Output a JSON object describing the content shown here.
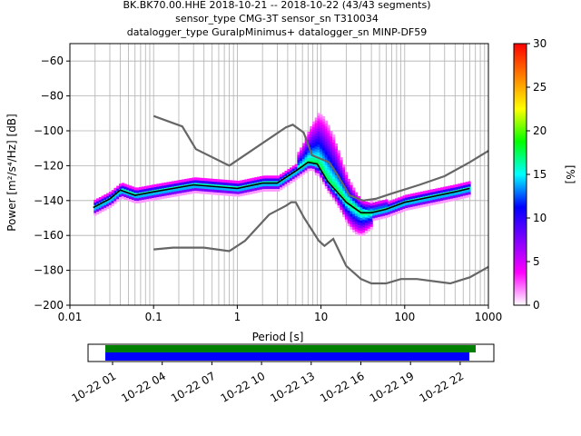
{
  "title_lines": [
    "BK.BK70.00.HHE   2018-10-21 -- 2018-10-22  (43/43 segments)",
    "sensor_type CMG-3T sensor_sn T310034",
    "datalogger_type GuralpMinimus+ datalogger_sn MINP-DF59"
  ],
  "chart_data": {
    "type": "heatmap",
    "xlabel": "Period [s]",
    "ylabel": "Power [m²/s⁴/Hz] [dB]",
    "xscale": "log",
    "xlim": [
      0.01,
      1000
    ],
    "ylim": [
      -200,
      -50
    ],
    "x_ticks": [
      0.01,
      0.1,
      1,
      10,
      100,
      1000
    ],
    "x_tick_labels": [
      "0.01",
      "0.1",
      "1",
      "10",
      "100",
      "1000"
    ],
    "y_ticks": [
      -200,
      -180,
      -160,
      -140,
      -120,
      -100,
      -80,
      -60
    ],
    "y_tick_labels": [
      "−200",
      "−180",
      "−160",
      "−140",
      "−120",
      "−100",
      "−80",
      "−60"
    ],
    "grid": true,
    "colorbar": {
      "label": "[%]",
      "range": [
        0,
        30
      ],
      "ticks": [
        0,
        5,
        10,
        15,
        20,
        25,
        30
      ],
      "tick_labels": [
        "0",
        "5",
        "10",
        "15",
        "20",
        "25",
        "30"
      ],
      "colors": [
        "#ffffff",
        "#ff00ff",
        "#8000ff",
        "#0000ff",
        "#00ffff",
        "#00ff00",
        "#ffff00",
        "#ff8000",
        "#ff0000"
      ]
    },
    "series": [
      {
        "color": "#666666",
        "points": [
          [
            0.1,
            -91.5
          ],
          [
            0.22,
            -97.5
          ],
          [
            0.32,
            -110.5
          ],
          [
            0.8,
            -120
          ],
          [
            3.8,
            -98
          ],
          [
            4.6,
            -96.5
          ],
          [
            6.2,
            -101
          ],
          [
            7.8,
            -114
          ],
          [
            12.5,
            -118
          ],
          [
            15.6,
            -125
          ],
          [
            21.9,
            -137
          ],
          [
            31.6,
            -140
          ],
          [
            45,
            -139
          ],
          [
            70,
            -136
          ],
          [
            150,
            -131
          ],
          [
            300,
            -126
          ],
          [
            600,
            -118
          ],
          [
            1000,
            -111.5
          ]
        ]
      },
      {
        "color": "#666666",
        "points": [
          [
            0.1,
            -168
          ],
          [
            0.17,
            -167
          ],
          [
            0.4,
            -167
          ],
          [
            0.8,
            -169
          ],
          [
            1.24,
            -163
          ],
          [
            2.4,
            -148
          ],
          [
            3.8,
            -143
          ],
          [
            4.4,
            -141
          ],
          [
            5.0,
            -141
          ],
          [
            6.3,
            -150
          ],
          [
            7.8,
            -157
          ],
          [
            9.4,
            -163
          ],
          [
            11,
            -166
          ],
          [
            14,
            -162
          ],
          [
            20,
            -177.5
          ],
          [
            30,
            -185
          ],
          [
            40,
            -187.5
          ],
          [
            60,
            -187.5
          ],
          [
            90,
            -185
          ],
          [
            140,
            -185
          ],
          [
            350,
            -187.5
          ],
          [
            600,
            -184
          ],
          [
            1000,
            -178
          ]
        ]
      },
      {
        "color": "#000000",
        "points": [
          [
            0.019,
            -144
          ],
          [
            0.025,
            -141
          ],
          [
            0.03,
            -139
          ],
          [
            0.04,
            -134
          ],
          [
            0.06,
            -137
          ],
          [
            0.1,
            -135
          ],
          [
            0.3,
            -131
          ],
          [
            1.0,
            -133
          ],
          [
            2.0,
            -130
          ],
          [
            3.0,
            -130
          ],
          [
            5.0,
            -123
          ],
          [
            7.0,
            -118
          ],
          [
            9.0,
            -119
          ],
          [
            12,
            -129
          ],
          [
            20,
            -141
          ],
          [
            30,
            -147
          ],
          [
            40,
            -147
          ],
          [
            60,
            -145
          ],
          [
            100,
            -141
          ],
          [
            200,
            -138
          ],
          [
            400,
            -135
          ],
          [
            600,
            -133
          ]
        ]
      }
    ]
  },
  "timeline": {
    "tick_labels": [
      "10-22 01",
      "10-22 04",
      "10-22 07",
      "10-22 10",
      "10-22 13",
      "10-22 16",
      "10-22 19",
      "10-22 22"
    ],
    "colors": {
      "data": "#008000",
      "psd": "#0000ff"
    }
  }
}
